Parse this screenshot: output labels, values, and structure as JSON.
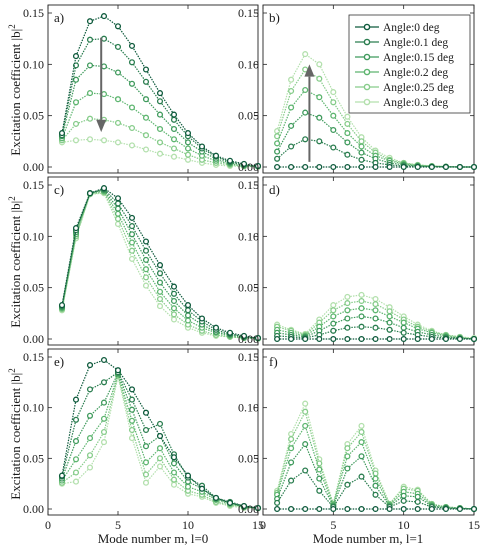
{
  "figure": {
    "ylabel": "Excitation coefficient |b|",
    "ylabel_sup": "2",
    "xlabel_left": "Mode number m, l=0",
    "xlabel_right": "Mode number m, l=1"
  },
  "chart_data": [
    {
      "panel": "a)",
      "type": "line",
      "xlim": [
        0,
        15
      ],
      "ylim": [
        0,
        0.15
      ],
      "xticks": [
        0,
        5,
        10,
        15
      ],
      "yticks": [
        "0.00",
        "0.05",
        "0.10",
        "0.15"
      ],
      "annotation": "arrow-down",
      "x": [
        1,
        2,
        3,
        4,
        5,
        6,
        7,
        8,
        9,
        10,
        11,
        12,
        13,
        14,
        15
      ],
      "series": [
        {
          "name": "Angle:0 deg",
          "color": "#0e5a3c",
          "values": [
            0.033,
            0.108,
            0.142,
            0.147,
            0.137,
            0.118,
            0.095,
            0.072,
            0.051,
            0.033,
            0.02,
            0.011,
            0.006,
            0.003,
            0.001
          ]
        },
        {
          "name": "Angle:0.1 deg",
          "color": "#2a7d4f",
          "values": [
            0.031,
            0.099,
            0.124,
            0.125,
            0.117,
            0.102,
            0.083,
            0.064,
            0.046,
            0.03,
            0.018,
            0.01,
            0.005,
            0.002,
            0.001
          ]
        },
        {
          "name": "Angle:0.15 deg",
          "color": "#3f9a5c",
          "values": [
            0.03,
            0.085,
            0.099,
            0.098,
            0.092,
            0.081,
            0.066,
            0.051,
            0.037,
            0.024,
            0.015,
            0.008,
            0.004,
            0.002,
            0.001
          ]
        },
        {
          "name": "Angle:0.2 deg",
          "color": "#5db56f",
          "values": [
            0.028,
            0.063,
            0.072,
            0.071,
            0.066,
            0.058,
            0.048,
            0.037,
            0.027,
            0.018,
            0.011,
            0.006,
            0.003,
            0.001,
            0.0005
          ]
        },
        {
          "name": "Angle:0.25 deg",
          "color": "#86cc8a",
          "values": [
            0.026,
            0.042,
            0.047,
            0.046,
            0.043,
            0.038,
            0.031,
            0.024,
            0.018,
            0.012,
            0.007,
            0.004,
            0.002,
            0.001,
            0.0004
          ]
        },
        {
          "name": "Angle:0.3 deg",
          "color": "#b3e0ad",
          "values": [
            0.024,
            0.026,
            0.027,
            0.026,
            0.024,
            0.021,
            0.017,
            0.013,
            0.01,
            0.007,
            0.004,
            0.002,
            0.001,
            0.0005,
            0.0002
          ]
        }
      ]
    },
    {
      "panel": "b)",
      "type": "line",
      "xlim": [
        0,
        15
      ],
      "ylim": [
        0,
        0.15
      ],
      "xticks": [
        0,
        5,
        10,
        15
      ],
      "yticks": [
        "0.00",
        "0.05",
        "0.10",
        "0.15"
      ],
      "annotation": "arrow-up",
      "x": [
        1,
        2,
        3,
        4,
        5,
        6,
        7,
        8,
        9,
        10,
        11,
        12,
        13,
        14,
        15
      ],
      "series": [
        {
          "name": "Angle:0 deg",
          "color": "#0e5a3c",
          "values": [
            0,
            0,
            0,
            0,
            0,
            0,
            0,
            0,
            0,
            0,
            0,
            0,
            0,
            0,
            0
          ]
        },
        {
          "name": "Angle:0.1 deg",
          "color": "#2a7d4f",
          "values": [
            0.008,
            0.02,
            0.027,
            0.025,
            0.019,
            0.012,
            0.007,
            0.004,
            0.002,
            0.001,
            0.0005,
            0.0002,
            0.0001,
            0,
            0
          ]
        },
        {
          "name": "Angle:0.15 deg",
          "color": "#3f9a5c",
          "values": [
            0.015,
            0.04,
            0.053,
            0.048,
            0.036,
            0.024,
            0.014,
            0.008,
            0.004,
            0.002,
            0.001,
            0.0005,
            0.0002,
            0,
            0
          ]
        },
        {
          "name": "Angle:0.2 deg",
          "color": "#5db56f",
          "values": [
            0.023,
            0.058,
            0.075,
            0.068,
            0.05,
            0.033,
            0.02,
            0.011,
            0.006,
            0.003,
            0.0015,
            0.0007,
            0.0003,
            0,
            0
          ]
        },
        {
          "name": "Angle:0.25 deg",
          "color": "#86cc8a",
          "values": [
            0.03,
            0.074,
            0.095,
            0.086,
            0.063,
            0.042,
            0.025,
            0.014,
            0.007,
            0.004,
            0.002,
            0.001,
            0.0004,
            0,
            0
          ]
        },
        {
          "name": "Angle:0.3 deg",
          "color": "#b3e0ad",
          "values": [
            0.035,
            0.085,
            0.11,
            0.1,
            0.073,
            0.049,
            0.029,
            0.016,
            0.009,
            0.004,
            0.002,
            0.001,
            0.0005,
            0,
            0
          ]
        }
      ]
    },
    {
      "panel": "c)",
      "type": "line",
      "xlim": [
        0,
        15
      ],
      "ylim": [
        0,
        0.15
      ],
      "xticks": [
        0,
        5,
        10,
        15
      ],
      "yticks": [
        "0.00",
        "0.05",
        "0.10",
        "0.15"
      ],
      "x": [
        1,
        2,
        3,
        4,
        5,
        6,
        7,
        8,
        9,
        10,
        11,
        12,
        13,
        14,
        15
      ],
      "series": [
        {
          "name": "Angle:0 deg",
          "color": "#0e5a3c",
          "values": [
            0.033,
            0.108,
            0.142,
            0.147,
            0.137,
            0.118,
            0.095,
            0.072,
            0.051,
            0.033,
            0.02,
            0.011,
            0.006,
            0.003,
            0.001
          ]
        },
        {
          "name": "Angle:0.1 deg",
          "color": "#2a7d4f",
          "values": [
            0.032,
            0.106,
            0.142,
            0.146,
            0.132,
            0.11,
            0.086,
            0.064,
            0.044,
            0.028,
            0.017,
            0.009,
            0.005,
            0.002,
            0.001
          ]
        },
        {
          "name": "Angle:0.15 deg",
          "color": "#3f9a5c",
          "values": [
            0.031,
            0.104,
            0.142,
            0.145,
            0.127,
            0.102,
            0.077,
            0.055,
            0.037,
            0.023,
            0.014,
            0.007,
            0.004,
            0.002,
            0.001
          ]
        },
        {
          "name": "Angle:0.2 deg",
          "color": "#5db56f",
          "values": [
            0.03,
            0.102,
            0.142,
            0.144,
            0.122,
            0.094,
            0.068,
            0.046,
            0.03,
            0.018,
            0.011,
            0.006,
            0.003,
            0.001,
            0.0005
          ]
        },
        {
          "name": "Angle:0.25 deg",
          "color": "#86cc8a",
          "values": [
            0.029,
            0.1,
            0.141,
            0.143,
            0.117,
            0.086,
            0.06,
            0.039,
            0.024,
            0.014,
            0.008,
            0.004,
            0.002,
            0.001,
            0.0004
          ]
        },
        {
          "name": "Angle:0.3 deg",
          "color": "#b3e0ad",
          "values": [
            0.028,
            0.098,
            0.141,
            0.142,
            0.112,
            0.078,
            0.052,
            0.032,
            0.019,
            0.011,
            0.006,
            0.003,
            0.002,
            0.001,
            0.0003
          ]
        }
      ]
    },
    {
      "panel": "d)",
      "type": "line",
      "xlim": [
        0,
        15
      ],
      "ylim": [
        0,
        0.15
      ],
      "xticks": [
        0,
        5,
        10,
        15
      ],
      "yticks": [
        "0.00",
        "0.05",
        "0.10",
        "0.15"
      ],
      "x": [
        1,
        2,
        3,
        4,
        5,
        6,
        7,
        8,
        9,
        10,
        11,
        12,
        13,
        14,
        15
      ],
      "series": [
        {
          "name": "Angle:0 deg",
          "color": "#0e5a3c",
          "values": [
            0,
            0,
            0,
            0,
            0,
            0,
            0,
            0,
            0,
            0,
            0,
            0,
            0,
            0,
            0
          ]
        },
        {
          "name": "Angle:0.1 deg",
          "color": "#2a7d4f",
          "values": [
            0.003,
            0.002,
            0.001,
            0.004,
            0.008,
            0.011,
            0.012,
            0.011,
            0.009,
            0.006,
            0.004,
            0.002,
            0.001,
            0.0005,
            0
          ]
        },
        {
          "name": "Angle:0.15 deg",
          "color": "#3f9a5c",
          "values": [
            0.006,
            0.004,
            0.002,
            0.008,
            0.015,
            0.02,
            0.022,
            0.02,
            0.016,
            0.011,
            0.007,
            0.004,
            0.002,
            0.001,
            0
          ]
        },
        {
          "name": "Angle:0.2 deg",
          "color": "#5db56f",
          "values": [
            0.009,
            0.006,
            0.003,
            0.012,
            0.022,
            0.028,
            0.03,
            0.028,
            0.022,
            0.016,
            0.01,
            0.006,
            0.003,
            0.001,
            0
          ]
        },
        {
          "name": "Angle:0.25 deg",
          "color": "#86cc8a",
          "values": [
            0.012,
            0.008,
            0.004,
            0.016,
            0.028,
            0.035,
            0.037,
            0.034,
            0.027,
            0.019,
            0.012,
            0.007,
            0.004,
            0.002,
            0
          ]
        },
        {
          "name": "Angle:0.3 deg",
          "color": "#b3e0ad",
          "values": [
            0.014,
            0.009,
            0.005,
            0.019,
            0.033,
            0.041,
            0.043,
            0.039,
            0.031,
            0.022,
            0.014,
            0.008,
            0.004,
            0.002,
            0.001
          ]
        }
      ]
    },
    {
      "panel": "e)",
      "type": "line",
      "xlim": [
        0,
        15
      ],
      "ylim": [
        0,
        0.15
      ],
      "xticks": [
        0,
        5,
        10,
        15
      ],
      "yticks": [
        "0.00",
        "0.05",
        "0.10",
        "0.15"
      ],
      "x": [
        1,
        2,
        3,
        4,
        5,
        6,
        7,
        8,
        9,
        10,
        11,
        12,
        13,
        14,
        15
      ],
      "series": [
        {
          "name": "Angle:0 deg",
          "color": "#0e5a3c",
          "values": [
            0.033,
            0.108,
            0.142,
            0.147,
            0.137,
            0.118,
            0.095,
            0.072,
            0.051,
            0.033,
            0.02,
            0.011,
            0.006,
            0.003,
            0.001
          ]
        },
        {
          "name": "Angle:0.1 deg",
          "color": "#2a7d4f",
          "values": [
            0.032,
            0.088,
            0.118,
            0.125,
            0.135,
            0.108,
            0.078,
            0.084,
            0.054,
            0.031,
            0.023,
            0.011,
            0.007,
            0.003,
            0.001
          ]
        },
        {
          "name": "Angle:0.15 deg",
          "color": "#3f9a5c",
          "values": [
            0.03,
            0.067,
            0.092,
            0.105,
            0.134,
            0.098,
            0.062,
            0.072,
            0.045,
            0.027,
            0.02,
            0.01,
            0.006,
            0.002,
            0.001
          ]
        },
        {
          "name": "Angle:0.2 deg",
          "color": "#5db56f",
          "values": [
            0.028,
            0.049,
            0.07,
            0.089,
            0.133,
            0.087,
            0.046,
            0.06,
            0.036,
            0.022,
            0.017,
            0.009,
            0.005,
            0.002,
            0.001
          ]
        },
        {
          "name": "Angle:0.25 deg",
          "color": "#86cc8a",
          "values": [
            0.026,
            0.036,
            0.053,
            0.076,
            0.132,
            0.078,
            0.034,
            0.05,
            0.029,
            0.018,
            0.014,
            0.007,
            0.004,
            0.002,
            0.001
          ]
        },
        {
          "name": "Angle:0.3 deg",
          "color": "#b3e0ad",
          "values": [
            0.025,
            0.027,
            0.041,
            0.066,
            0.131,
            0.07,
            0.026,
            0.042,
            0.024,
            0.015,
            0.012,
            0.006,
            0.003,
            0.001,
            0.0005
          ]
        }
      ]
    },
    {
      "panel": "f)",
      "type": "line",
      "xlim": [
        0,
        15
      ],
      "ylim": [
        0,
        0.15
      ],
      "xticks": [
        0,
        5,
        10,
        15
      ],
      "yticks": [
        "0.00",
        "0.05",
        "0.10",
        "0.15"
      ],
      "x": [
        1,
        2,
        3,
        4,
        5,
        6,
        7,
        8,
        9,
        10,
        11,
        12,
        13,
        14,
        15
      ],
      "series": [
        {
          "name": "Angle:0 deg",
          "color": "#0e5a3c",
          "values": [
            0,
            0,
            0,
            0,
            0,
            0,
            0,
            0,
            0,
            0,
            0,
            0,
            0,
            0,
            0
          ]
        },
        {
          "name": "Angle:0.1 deg",
          "color": "#2a7d4f",
          "values": [
            0.006,
            0.028,
            0.038,
            0.018,
            0.002,
            0.024,
            0.032,
            0.014,
            0.002,
            0.008,
            0.007,
            0.002,
            0.001,
            0.0005,
            0
          ]
        },
        {
          "name": "Angle:0.15 deg",
          "color": "#3f9a5c",
          "values": [
            0.01,
            0.046,
            0.064,
            0.03,
            0.003,
            0.04,
            0.052,
            0.023,
            0.003,
            0.013,
            0.012,
            0.003,
            0.001,
            0.0005,
            0
          ]
        },
        {
          "name": "Angle:0.2 deg",
          "color": "#5db56f",
          "values": [
            0.014,
            0.06,
            0.082,
            0.039,
            0.004,
            0.052,
            0.066,
            0.03,
            0.004,
            0.017,
            0.015,
            0.004,
            0.002,
            0.001,
            0
          ]
        },
        {
          "name": "Angle:0.25 deg",
          "color": "#86cc8a",
          "values": [
            0.016,
            0.069,
            0.096,
            0.045,
            0.005,
            0.06,
            0.076,
            0.035,
            0.005,
            0.02,
            0.018,
            0.005,
            0.002,
            0.001,
            0
          ]
        },
        {
          "name": "Angle:0.3 deg",
          "color": "#b3e0ad",
          "values": [
            0.018,
            0.074,
            0.104,
            0.049,
            0.005,
            0.064,
            0.082,
            0.038,
            0.005,
            0.022,
            0.019,
            0.005,
            0.002,
            0.001,
            0
          ]
        }
      ]
    }
  ]
}
